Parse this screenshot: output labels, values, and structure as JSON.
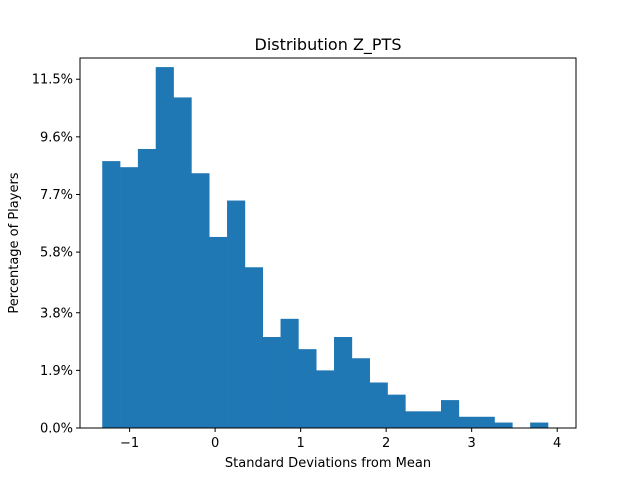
{
  "chart_data": {
    "type": "histogram",
    "title": "Distribution Z_PTS",
    "xlabel": "Standard Deviations from Mean",
    "ylabel": "Percentage of Players",
    "xlim": [
      -1.58,
      4.22
    ],
    "ylim": [
      0,
      12.2
    ],
    "x_ticks": [
      {
        "value": -1,
        "label": "−1"
      },
      {
        "value": 0,
        "label": "0"
      },
      {
        "value": 1,
        "label": "1"
      },
      {
        "value": 2,
        "label": "2"
      },
      {
        "value": 3,
        "label": "3"
      },
      {
        "value": 4,
        "label": "4"
      }
    ],
    "y_ticks": [
      {
        "value": 0.0,
        "label": "0.0%"
      },
      {
        "value": 1.9,
        "label": "1.9%"
      },
      {
        "value": 3.8,
        "label": "3.8%"
      },
      {
        "value": 5.8,
        "label": "5.8%"
      },
      {
        "value": 7.7,
        "label": "7.7%"
      },
      {
        "value": 9.6,
        "label": "9.6%"
      },
      {
        "value": 11.5,
        "label": "11.5%"
      }
    ],
    "bin_start": -1.32,
    "bin_width": 0.2085,
    "values": [
      8.8,
      8.6,
      9.2,
      11.9,
      10.9,
      8.4,
      6.3,
      7.5,
      5.3,
      3.0,
      3.6,
      2.6,
      1.9,
      3.0,
      2.3,
      1.5,
      1.1,
      0.55,
      0.55,
      0.92,
      0.37,
      0.37,
      0.18,
      0.0,
      0.18
    ],
    "bar_color": "#1f77b4",
    "grid": false
  }
}
